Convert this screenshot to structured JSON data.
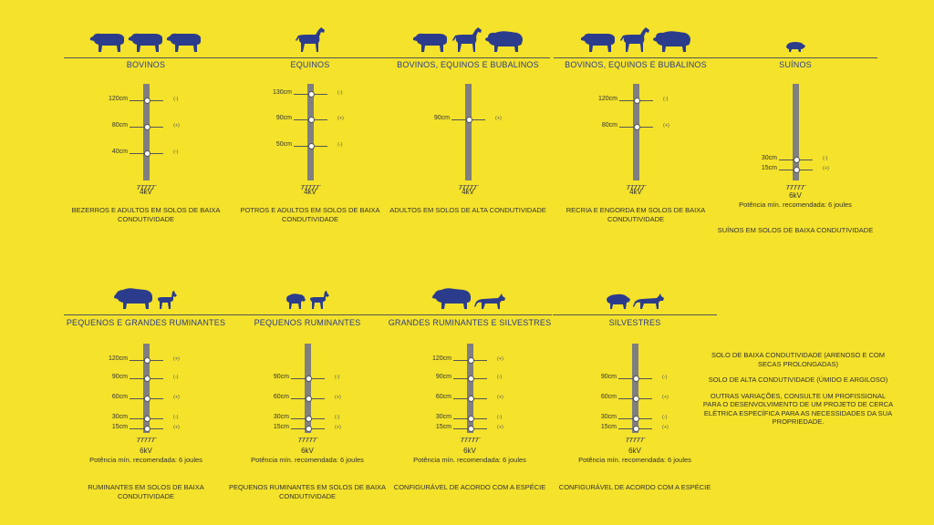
{
  "panels": [
    {
      "id": "bovinos",
      "title": "BOVINOS",
      "animals": [
        "cow",
        "cow",
        "cow"
      ],
      "wires": [
        {
          "height": "120cm",
          "sign": "(-)"
        },
        {
          "height": "80cm",
          "sign": "(+)"
        },
        {
          "height": "40cm",
          "sign": "(-)"
        }
      ],
      "voltage": "4kV",
      "power": "",
      "description": "BEZERROS E ADULTOS EM SOLOS DE BAIXA CONDUTIVIDADE"
    },
    {
      "id": "equinos",
      "title": "EQUINOS",
      "animals": [
        "horse"
      ],
      "wires": [
        {
          "height": "130cm",
          "sign": "(-)"
        },
        {
          "height": "90cm",
          "sign": "(+)"
        },
        {
          "height": "50cm",
          "sign": "(-)"
        }
      ],
      "voltage": "4kV",
      "power": "",
      "description": "POTROS E ADULTOS EM SOLOS DE BAIXA CONDUTIVIDADE"
    },
    {
      "id": "bovinos-equinos-bubalinos-alta",
      "title": "BOVINOS, EQUINOS E BUBALINOS",
      "animals": [
        "cow",
        "horse",
        "buffalo"
      ],
      "wires": [
        {
          "height": "90cm",
          "sign": "(+)"
        }
      ],
      "voltage": "4kV",
      "power": "",
      "description": "ADULTOS EM SOLOS DE ALTA CONDUTIVIDADE"
    },
    {
      "id": "bovinos-equinos-bubalinos-baixa",
      "title": "BOVINOS, EQUINOS E BUBALINOS",
      "animals": [
        "cow",
        "horse",
        "buffalo"
      ],
      "wires": [
        {
          "height": "120cm",
          "sign": "(-)"
        },
        {
          "height": "80cm",
          "sign": "(+)"
        }
      ],
      "voltage": "4kV",
      "power": "",
      "description": "RECRIA E ENGORDA EM SOLOS DE BAIXA CONDUTIVIDADE"
    },
    {
      "id": "suinos",
      "title": "SUÍNOS",
      "animals": [
        "pig"
      ],
      "wires": [
        {
          "height": "30cm",
          "sign": "(-)"
        },
        {
          "height": "15cm",
          "sign": "(+)"
        }
      ],
      "voltage": "6kV",
      "power": "Potência mín. recomendada: 6 joules",
      "description": "SUÍNOS EM SOLOS DE BAIXA CONDUTIVIDADE"
    },
    {
      "id": "pequenos-grandes-ruminantes",
      "title": "PEQUENOS E GRANDES RUMINANTES",
      "animals": [
        "bull",
        "goat"
      ],
      "wires": [
        {
          "height": "120cm",
          "sign": "(+)"
        },
        {
          "height": "90cm",
          "sign": "(-)"
        },
        {
          "height": "60cm",
          "sign": "(+)"
        },
        {
          "height": "30cm",
          "sign": "(-)"
        },
        {
          "height": "15cm",
          "sign": "(+)"
        }
      ],
      "voltage": "6kV",
      "power": "Potência mín. recomendada: 6 joules",
      "description": "RUMINANTES EM SOLOS DE BAIXA CONDUTIVIDADE"
    },
    {
      "id": "pequenos-ruminantes",
      "title": "PEQUENOS RUMINANTES",
      "animals": [
        "sheep",
        "goat"
      ],
      "wires": [
        {
          "height": "90cm",
          "sign": "(-)"
        },
        {
          "height": "60cm",
          "sign": "(+)"
        },
        {
          "height": "30cm",
          "sign": "(-)"
        },
        {
          "height": "15cm",
          "sign": "(+)"
        }
      ],
      "voltage": "6kV",
      "power": "Potência mín. recomendada: 6 joules",
      "description": "PEQUENOS RUMINANTES EM SOLOS DE BAIXA CONDUTIVIDADE"
    },
    {
      "id": "grandes-ruminantes-silvestres",
      "title": "GRANDES RUMINANTES E SILVESTRES",
      "animals": [
        "bull",
        "cat"
      ],
      "wires": [
        {
          "height": "120cm",
          "sign": "(+)"
        },
        {
          "height": "90cm",
          "sign": "(-)"
        },
        {
          "height": "60cm",
          "sign": "(+)"
        },
        {
          "height": "30cm",
          "sign": "(-)"
        },
        {
          "height": "15cm",
          "sign": "(+)"
        }
      ],
      "voltage": "6kV",
      "power": "Potência mín. recomendada: 6 joules",
      "description": "CONFIGURÁVEL DE ACORDO COM A ESPÉCIE"
    },
    {
      "id": "silvestres",
      "title": "SILVESTRES",
      "animals": [
        "boar",
        "cat"
      ],
      "wires": [
        {
          "height": "90cm",
          "sign": "(-)"
        },
        {
          "height": "60cm",
          "sign": "(+)"
        },
        {
          "height": "30cm",
          "sign": "(-)"
        },
        {
          "height": "15cm",
          "sign": "(+)"
        }
      ],
      "voltage": "6kV",
      "power": "Potência mín. recomendada: 6 joules",
      "description": "CONFIGURÁVEL DE ACORDO COM A ESPÉCIE"
    }
  ],
  "legend": {
    "low_conductivity": "SOLO DE BAIXA CONDUTIVIDADE (ARENOSO E COM SECAS PROLONGADAS)",
    "high_conductivity": "SOLO DE ALTA CONDUTIVIDADE (ÚMIDO E ARGILOSO)",
    "other": "OUTRAS VARIAÇÕES, CONSULTE UM PROFISSIONAL PARA O DESENVOLVIMENTO DE UM PROJETO DE CERCA ELÉTRICA ESPECÍFICA PARA AS NECESSIDADES DA SUA PROPRIEDADE."
  },
  "colors": {
    "background": "#f4e22b",
    "animal": "#2c3c8c",
    "post": "#7f7f7f",
    "text": "#333333",
    "title": "#2c3c8c"
  }
}
